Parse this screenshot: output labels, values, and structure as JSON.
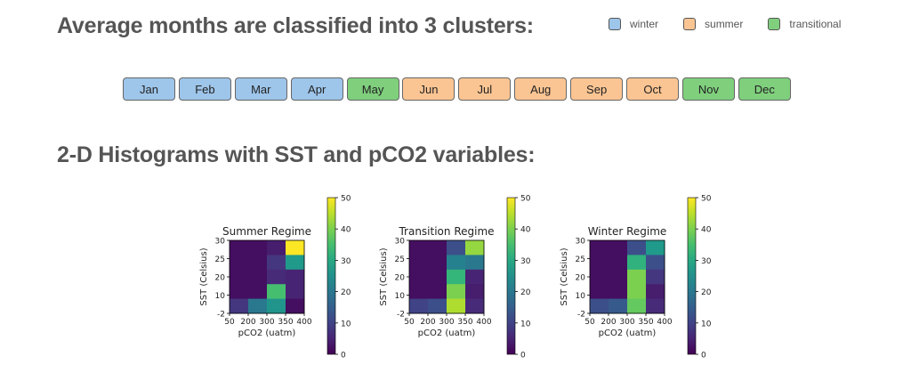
{
  "heading_clusters": "Average months are classified into 3 clusters:",
  "heading_histograms": "2-D Histograms with SST and pCO2 variables:",
  "legend": [
    {
      "label": "winter",
      "color": "#9ec5ea"
    },
    {
      "label": "summer",
      "color": "#fbc593"
    },
    {
      "label": "transitional",
      "color": "#7fcf7d"
    }
  ],
  "months": [
    {
      "label": "Jan",
      "cluster": "winter"
    },
    {
      "label": "Feb",
      "cluster": "winter"
    },
    {
      "label": "Mar",
      "cluster": "winter"
    },
    {
      "label": "Apr",
      "cluster": "winter"
    },
    {
      "label": "May",
      "cluster": "transitional"
    },
    {
      "label": "Jun",
      "cluster": "summer"
    },
    {
      "label": "Jul",
      "cluster": "summer"
    },
    {
      "label": "Aug",
      "cluster": "summer"
    },
    {
      "label": "Sep",
      "cluster": "summer"
    },
    {
      "label": "Oct",
      "cluster": "summer"
    },
    {
      "label": "Nov",
      "cluster": "transitional"
    },
    {
      "label": "Dec",
      "cluster": "transitional"
    }
  ],
  "chart_data": [
    {
      "type": "heatmap",
      "title": "Summer Regime",
      "xlabel": "pCO2 (uatm)",
      "ylabel": "SST (Celsius)",
      "x_ticks": [
        "50",
        "200",
        "300",
        "350",
        "400"
      ],
      "y_ticks": [
        "-2",
        "10",
        "20",
        "25",
        "30"
      ],
      "colorbar_ticks": [
        "0",
        "10",
        "20",
        "30",
        "40",
        "50"
      ],
      "colorbar_range": [
        0,
        50
      ],
      "grid_rows_top_to_bottom": [
        [
          2,
          2,
          4,
          50
        ],
        [
          2,
          2,
          8,
          27
        ],
        [
          2,
          2,
          6,
          5
        ],
        [
          2,
          2,
          35,
          5
        ],
        [
          8,
          20,
          26,
          2
        ]
      ]
    },
    {
      "type": "heatmap",
      "title": "Transition Regime",
      "xlabel": "pCO2 (uatm)",
      "ylabel": "SST (Celsius)",
      "x_ticks": [
        "50",
        "200",
        "300",
        "350",
        "400"
      ],
      "y_ticks": [
        "-2",
        "10",
        "20",
        "25",
        "30"
      ],
      "colorbar_ticks": [
        "0",
        "10",
        "20",
        "30",
        "40",
        "50"
      ],
      "colorbar_range": [
        0,
        50
      ],
      "grid_rows_top_to_bottom": [
        [
          2,
          2,
          12,
          42
        ],
        [
          2,
          2,
          22,
          20
        ],
        [
          2,
          2,
          33,
          5
        ],
        [
          2,
          2,
          40,
          4
        ],
        [
          10,
          12,
          44,
          6
        ]
      ]
    },
    {
      "type": "heatmap",
      "title": "Winter Regime",
      "xlabel": "pCO2 (uatm)",
      "ylabel": "SST (Celsius)",
      "x_ticks": [
        "50",
        "200",
        "300",
        "350",
        "400"
      ],
      "y_ticks": [
        "-2",
        "10",
        "20",
        "25",
        "30"
      ],
      "colorbar_ticks": [
        "0",
        "10",
        "20",
        "30",
        "40",
        "50"
      ],
      "colorbar_range": [
        0,
        50
      ],
      "grid_rows_top_to_bottom": [
        [
          2,
          2,
          12,
          27
        ],
        [
          2,
          2,
          32,
          12
        ],
        [
          2,
          2,
          40,
          8
        ],
        [
          2,
          2,
          40,
          4
        ],
        [
          12,
          14,
          38,
          6
        ]
      ]
    }
  ]
}
